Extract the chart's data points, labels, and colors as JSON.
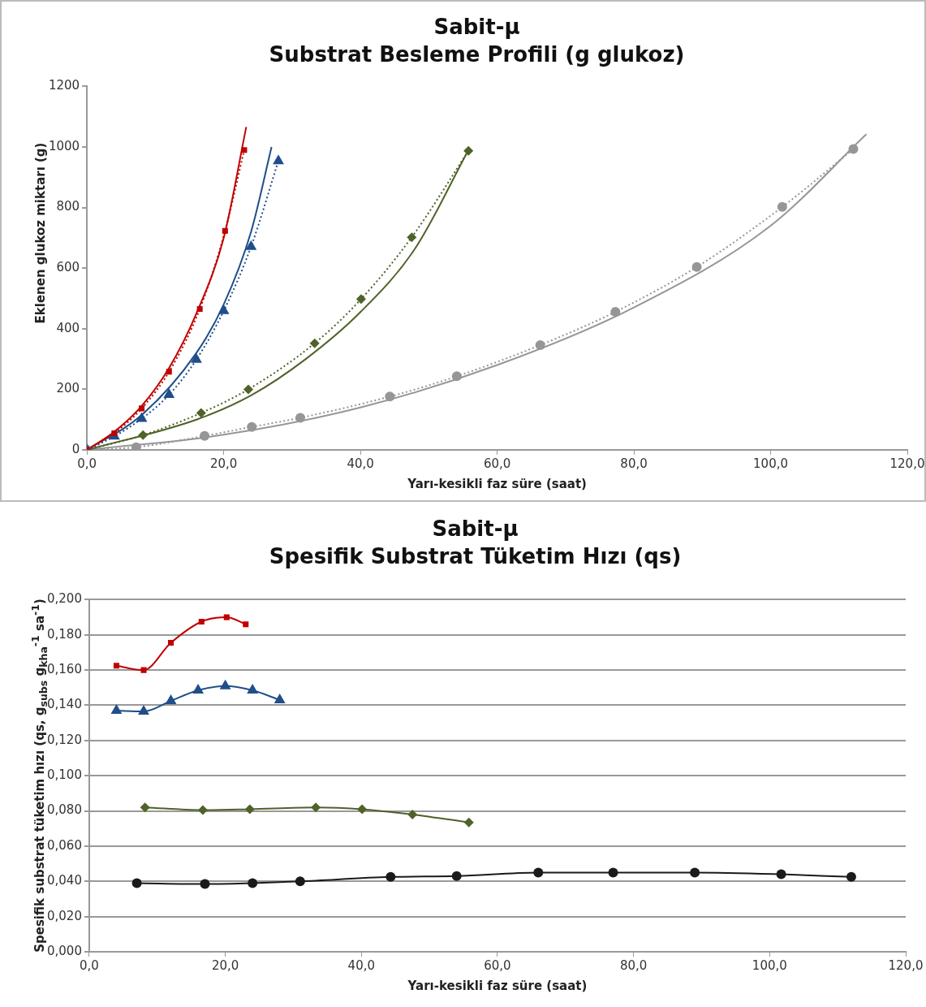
{
  "chart_data": [
    {
      "type": "line",
      "title": "Sabit-μ",
      "subtitle": "Substrat Besleme Profili (g glukoz)",
      "xlabel": "Yarı-kesikli faz süre (saat)",
      "ylabel": "Eklenen glukoz miktarı (g)",
      "grid": false,
      "xlim": [
        0,
        120
      ],
      "xticks": [
        {
          "value": 0,
          "label": "0,0"
        },
        {
          "value": 20,
          "label": "20,0"
        },
        {
          "value": 40,
          "label": "40,0"
        },
        {
          "value": 60,
          "label": "60,0"
        },
        {
          "value": 80,
          "label": "80,0"
        },
        {
          "value": 100,
          "label": "100,0"
        },
        {
          "value": 120,
          "label": "120,0"
        }
      ],
      "ylim": [
        0,
        1200
      ],
      "yticks": [
        0,
        200,
        400,
        600,
        800,
        1000,
        1200
      ],
      "series": [
        {
          "color": "#c00000",
          "marker": "square",
          "line_style": "dotted",
          "x": [
            0,
            4,
            8,
            12,
            16.5,
            20.2,
            23
          ],
          "values": [
            0,
            55,
            137,
            258,
            465,
            723,
            990
          ]
        },
        {
          "color": "#c00000",
          "marker": "none",
          "line_style": "solid",
          "x": [
            0,
            4,
            8,
            12,
            16,
            20,
            23.3
          ],
          "values": [
            0,
            60,
            145,
            270,
            450,
            700,
            1066
          ]
        },
        {
          "color": "#1f4e89",
          "marker": "triangle",
          "line_style": "dotted",
          "x": [
            0,
            4,
            8,
            12,
            16,
            20,
            24,
            28
          ],
          "values": [
            0,
            45,
            103,
            182,
            298,
            459,
            671,
            954
          ]
        },
        {
          "color": "#1f4e89",
          "marker": "none",
          "line_style": "solid",
          "x": [
            0,
            8,
            16,
            20,
            24,
            27
          ],
          "values": [
            0,
            115,
            320,
            480,
            720,
            1000
          ]
        },
        {
          "color": "#4f6228",
          "marker": "diamond",
          "line_style": "dotted",
          "x": [
            0,
            8.2,
            16.7,
            23.6,
            33.3,
            40.1,
            47.5,
            55.8
          ],
          "values": [
            0,
            49,
            122,
            200,
            352,
            498,
            702,
            987
          ]
        },
        {
          "color": "#4f6228",
          "marker": "none",
          "line_style": "solid",
          "x": [
            0,
            16,
            24,
            32,
            40,
            48,
            55.8
          ],
          "values": [
            0,
            100,
            180,
            300,
            455,
            665,
            990
          ]
        },
        {
          "color": "#969696",
          "marker": "circle",
          "line_style": "dotted",
          "x": [
            0,
            7.2,
            17.2,
            24.1,
            31.2,
            44.3,
            54.1,
            66.3,
            77.3,
            89.2,
            101.7,
            112.1
          ],
          "values": [
            0,
            9,
            46,
            76,
            106,
            176,
            243,
            346,
            456,
            604,
            802,
            993
          ]
        },
        {
          "color": "#969696",
          "marker": "none",
          "line_style": "solid",
          "x": [
            0,
            20,
            40,
            60,
            80,
            100,
            114
          ],
          "values": [
            0,
            50,
            140,
            280,
            470,
            740,
            1042
          ]
        }
      ]
    },
    {
      "type": "line",
      "title": "Sabit-μ",
      "subtitle": "Spesifik Substrat Tüketim Hızı (qs)",
      "xlabel": "Yarı-kesikli faz süre (saat)",
      "ylabel": "Spesifik  substrat tüketim hızı (qs, g$_{subs}$ g$_{kha}$$^{-1}$ sa$^{-1}$)",
      "grid": "y",
      "xlim": [
        0,
        120
      ],
      "xticks": [
        {
          "value": 0,
          "label": "0,0"
        },
        {
          "value": 20,
          "label": "20,0"
        },
        {
          "value": 40,
          "label": "40,0"
        },
        {
          "value": 60,
          "label": "60,0"
        },
        {
          "value": 80,
          "label": "80,0"
        },
        {
          "value": 100,
          "label": "100,0"
        },
        {
          "value": 120,
          "label": "120,0"
        }
      ],
      "ylim": [
        0,
        0.2
      ],
      "yticks": [
        {
          "value": 0,
          "label": "0,000"
        },
        {
          "value": 0.02,
          "label": "0,020"
        },
        {
          "value": 0.04,
          "label": "0,040"
        },
        {
          "value": 0.06,
          "label": "0,060"
        },
        {
          "value": 0.08,
          "label": "0,080"
        },
        {
          "value": 0.1,
          "label": "0,100"
        },
        {
          "value": 0.12,
          "label": "0,120"
        },
        {
          "value": 0.14,
          "label": "0,140"
        },
        {
          "value": 0.16,
          "label": "0,160"
        },
        {
          "value": 0.18,
          "label": "0,180"
        },
        {
          "value": 0.2,
          "label": "0,200"
        }
      ],
      "series": [
        {
          "color": "#c00000",
          "marker": "square",
          "line_style": "solid",
          "x": [
            4,
            8,
            12,
            16.5,
            20.2,
            23
          ],
          "values": [
            0.1625,
            0.16,
            0.1755,
            0.1875,
            0.19,
            0.186
          ]
        },
        {
          "color": "#1f4e89",
          "marker": "triangle",
          "line_style": "solid",
          "x": [
            4,
            8,
            12,
            16,
            20,
            24,
            28
          ],
          "values": [
            0.137,
            0.1365,
            0.1425,
            0.1485,
            0.151,
            0.1485,
            0.143
          ]
        },
        {
          "color": "#4f6228",
          "marker": "diamond",
          "line_style": "solid",
          "x": [
            8.2,
            16.7,
            23.6,
            33.3,
            40.1,
            47.5,
            55.8
          ],
          "values": [
            0.082,
            0.0805,
            0.081,
            0.082,
            0.081,
            0.078,
            0.0735
          ]
        },
        {
          "color": "#1a1a1a",
          "marker": "circle",
          "line_style": "solid",
          "x": [
            7,
            17,
            24,
            31,
            44.3,
            54,
            66,
            77,
            89,
            101.7,
            112
          ],
          "values": [
            0.039,
            0.0385,
            0.039,
            0.04,
            0.0425,
            0.043,
            0.045,
            0.045,
            0.045,
            0.044,
            0.0425
          ]
        }
      ]
    }
  ]
}
